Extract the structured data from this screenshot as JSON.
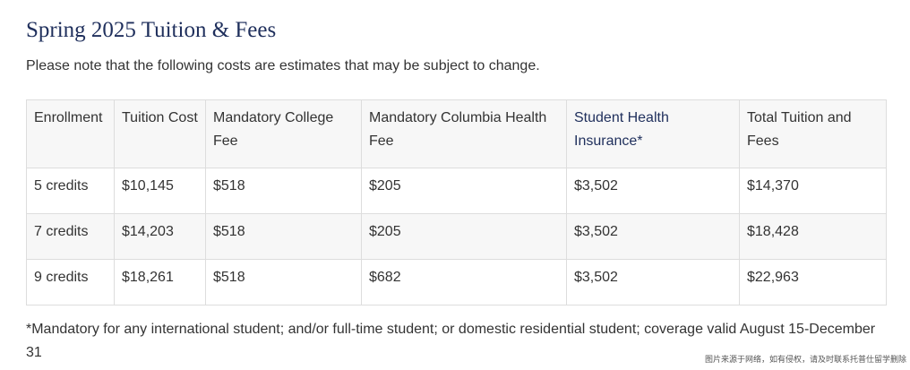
{
  "title": "Spring 2025 Tuition & Fees",
  "intro": "Please note that the following costs are estimates that may be subject to change.",
  "table": {
    "headers": [
      "Enrollment",
      "Tuition Cost",
      "Mandatory College Fee",
      "Mandatory Columbia Health Fee",
      "Student Health Insurance*",
      "Total Tuition and Fees"
    ],
    "rows": [
      [
        "5 credits",
        "$10,145",
        "$518",
        "$205",
        "$3,502",
        "$14,370"
      ],
      [
        "7 credits",
        "$14,203",
        "$518",
        "$205",
        "$3,502",
        "$18,428"
      ],
      [
        "9 credits",
        "$18,261",
        "$518",
        "$682",
        "$3,502",
        "$22,963"
      ]
    ]
  },
  "footnote": "*Mandatory for any international student; and/or full-time student; or domestic residential student; coverage valid August 15-December 31",
  "watermark": "图片来源于网络，如有侵权，请及时联系托普仕留学删除",
  "colors": {
    "title": "#1f2f5c",
    "text": "#333333",
    "border": "#dddddd",
    "shaded_row": "#f7f7f7"
  }
}
